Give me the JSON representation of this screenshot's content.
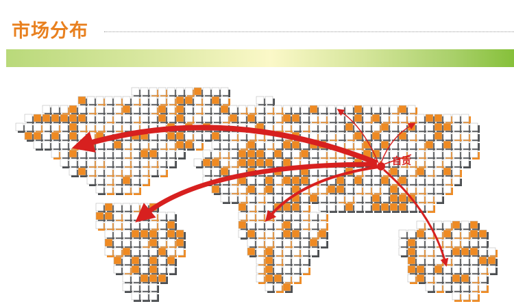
{
  "header": {
    "title": "市场分布"
  },
  "map": {
    "origin_label": "自贡",
    "colors": {
      "title": "#e8801f",
      "arrow": "#d7201f",
      "tile_accent": "#ef8a22",
      "tile_shadow": "#4a4d50"
    },
    "icon": "world-map-tiles"
  }
}
